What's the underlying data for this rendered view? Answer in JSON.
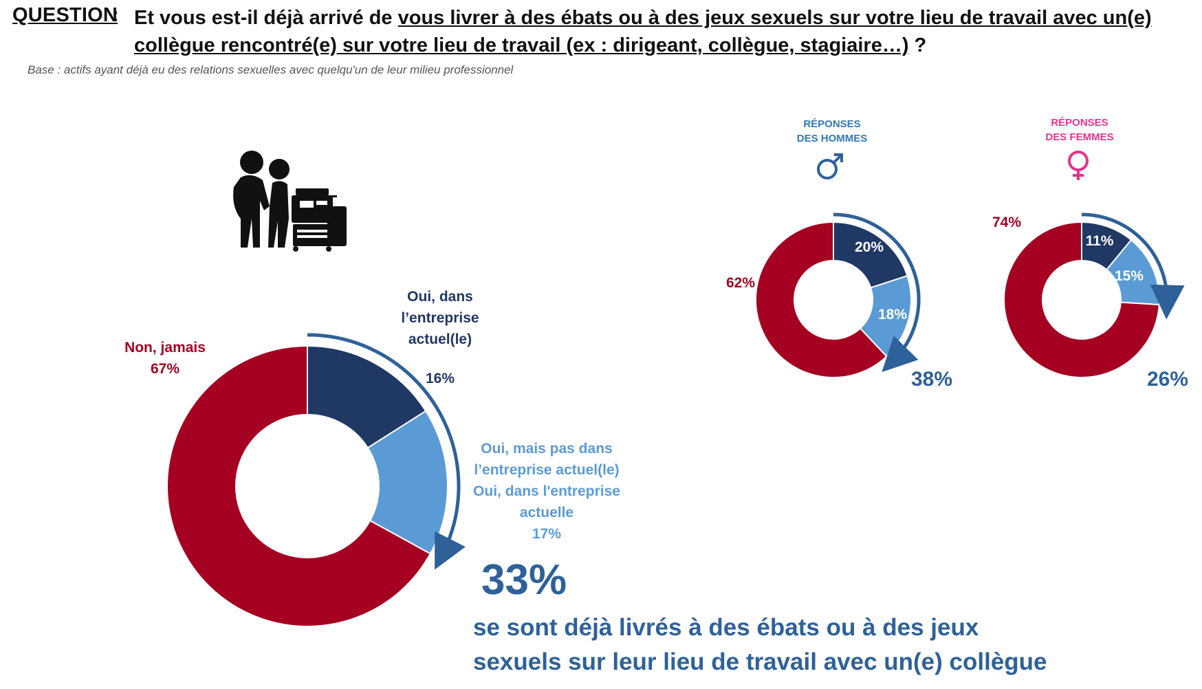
{
  "question": {
    "label": "QUESTION",
    "colon": ":",
    "prefix": "Et vous est-il déjà arrivé de ",
    "underlined": "vous livrer à des ébats ou à des jeux sexuels sur votre lieu de travail avec un(e) collègue rencontré(e) sur votre lieu de travail (ex : dirigeant, collègue, stagiaire…)",
    "suffix": " ?"
  },
  "base_note": "Base : actifs ayant déjà eu des relations sexuelles avec quelqu'un de leur milieu professionnel",
  "icons": {
    "illustration": "couple-at-photocopier-icon",
    "male": "male-symbol-icon",
    "female": "female-symbol-icon"
  },
  "colors": {
    "navy": "#1f3864",
    "light_blue": "#5b9bd5",
    "red": "#a50021",
    "arrow_blue": "#2e6199",
    "pink": "#e6338c"
  },
  "chart_data": [
    {
      "type": "pie",
      "variant": "donut",
      "categories": [
        "Oui, dans l’entreprise actuel(le)",
        "Oui, mais pas dans l’entreprise actuel(le) Oui, dans l'entreprise actuelle",
        "Non, jamais"
      ],
      "values": [
        16,
        17,
        67
      ],
      "labels": {
        "oui_actuel_text": [
          "Oui, dans",
          "l’entreprise",
          "actuel(le)"
        ],
        "oui_actuel_pct": "16%",
        "oui_autre_text": [
          "Oui, mais pas dans",
          "l’entreprise actuel(le)",
          "Oui, dans l'entreprise",
          "actuelle"
        ],
        "oui_autre_pct": "17%",
        "non_text": "Non, jamais",
        "non_pct": "67%"
      },
      "total_yes": "33%",
      "summary": [
        "se sont déjà livrés à des ébats ou à des jeux",
        "sexuels sur leur lieu de travail avec un(e) collègue"
      ]
    },
    {
      "type": "pie",
      "variant": "donut",
      "title": [
        "RÉPONSES",
        "DES HOMMES"
      ],
      "values": [
        20,
        18,
        62
      ],
      "labels": [
        "20%",
        "18%",
        "62%"
      ],
      "total_yes": "38%"
    },
    {
      "type": "pie",
      "variant": "donut",
      "title": [
        "RÉPONSES",
        "DES FEMMES"
      ],
      "values": [
        11,
        15,
        74
      ],
      "labels": [
        "11%",
        "15%",
        "74%"
      ],
      "total_yes": "26%"
    }
  ]
}
